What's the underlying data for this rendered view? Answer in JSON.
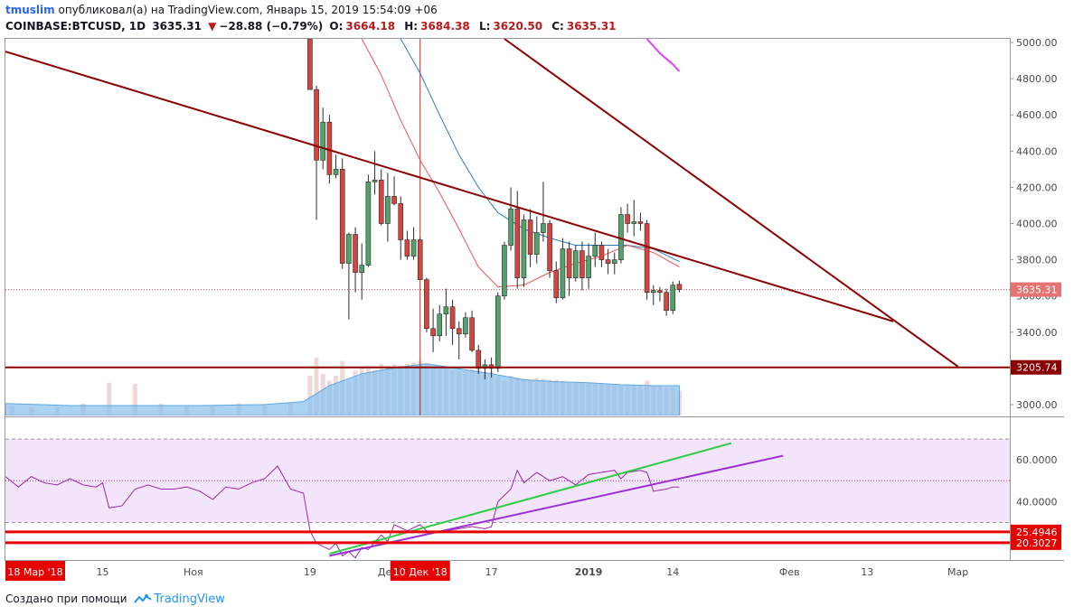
{
  "header": {
    "user": "tmuslim",
    "published": "опубликовал(а) на TradingView.com, Январь 15, 2019 15:54:09 +06",
    "symbol": "COINBASE:BTCUSD, 1D",
    "last": "3635.31",
    "change": "−28.88 (−0.79%)",
    "open_label": "O:",
    "open": "3664.18",
    "high_label": "H:",
    "high": "3684.38",
    "low_label": "L:",
    "low": "3620.50",
    "close_label": "C:",
    "close": "3635.31"
  },
  "footer": {
    "created_with": "Создано при помощи",
    "brand": "TradingView"
  },
  "colors": {
    "up": "#53a26b",
    "down": "#d4453f",
    "trend": "#8b0000",
    "ma_fast": "#ef5350",
    "ma_slow": "#2979c4",
    "rsi": "#9c27b0",
    "rsi_band": "#f3e5fb",
    "green_line": "#2ecc40",
    "purple_line": "#9b2fd6",
    "level_red": "#e60000"
  },
  "chart_data": {
    "type": "candlestick",
    "symbol": "COINBASE:BTCUSD",
    "interval": "1D",
    "price_axis": {
      "ticks": [
        "3000.00",
        "3200.00",
        "3400.00",
        "3600.00",
        "3800.00",
        "4000.00",
        "4200.00",
        "4400.00",
        "4600.00",
        "4800.00",
        "5000.00"
      ],
      "tick_values": [
        3000,
        3200,
        3400,
        3600,
        3800,
        4000,
        4200,
        4400,
        4600,
        4800,
        5000
      ],
      "range": [
        2940,
        5020
      ],
      "last_price_label": "3635.31",
      "last_price": 3635.31,
      "support_label": "3205.74",
      "support": 3205.74
    },
    "time_axis": {
      "ticks": [
        {
          "label": "15",
          "day": 15
        },
        {
          "label": "Ноя",
          "day": 29
        },
        {
          "label": "19",
          "day": 47
        },
        {
          "label": "Дек",
          "day": 59
        },
        {
          "label": "17",
          "day": 75
        },
        {
          "label": "2019",
          "day": 90
        },
        {
          "label": "14",
          "day": 103
        },
        {
          "label": "Фев",
          "day": 121
        },
        {
          "label": "13",
          "day": 133
        },
        {
          "label": "Мар",
          "day": 147
        }
      ],
      "range": [
        0,
        155
      ],
      "left_flag": "18 Мар '18",
      "cursor_flag": "10 Дек '18",
      "cursor_day": 64
    },
    "ohlc": [
      {
        "d": 47,
        "o": 5020,
        "h": 5020,
        "l": 4740,
        "c": 4740
      },
      {
        "d": 48,
        "o": 4740,
        "h": 4760,
        "l": 4020,
        "c": 4350
      },
      {
        "d": 49,
        "o": 4350,
        "h": 4640,
        "l": 4300,
        "c": 4560
      },
      {
        "d": 50,
        "o": 4560,
        "h": 4600,
        "l": 4220,
        "c": 4270
      },
      {
        "d": 51,
        "o": 4270,
        "h": 4380,
        "l": 4250,
        "c": 4300
      },
      {
        "d": 52,
        "o": 4300,
        "h": 4360,
        "l": 3750,
        "c": 3780
      },
      {
        "d": 53,
        "o": 3780,
        "h": 3950,
        "l": 3470,
        "c": 3940
      },
      {
        "d": 54,
        "o": 3940,
        "h": 3980,
        "l": 3620,
        "c": 3730
      },
      {
        "d": 55,
        "o": 3730,
        "h": 3890,
        "l": 3580,
        "c": 3770
      },
      {
        "d": 56,
        "o": 3770,
        "h": 4270,
        "l": 3760,
        "c": 4230
      },
      {
        "d": 57,
        "o": 4230,
        "h": 4400,
        "l": 4160,
        "c": 4240
      },
      {
        "d": 58,
        "o": 4240,
        "h": 4300,
        "l": 3990,
        "c": 4000
      },
      {
        "d": 59,
        "o": 4000,
        "h": 4280,
        "l": 3900,
        "c": 4150
      },
      {
        "d": 60,
        "o": 4150,
        "h": 4260,
        "l": 4100,
        "c": 4110
      },
      {
        "d": 61,
        "o": 4110,
        "h": 4150,
        "l": 3800,
        "c": 3910
      },
      {
        "d": 62,
        "o": 3910,
        "h": 3960,
        "l": 3800,
        "c": 3820
      },
      {
        "d": 63,
        "o": 3820,
        "h": 3980,
        "l": 3800,
        "c": 3910
      },
      {
        "d": 64,
        "o": 3910,
        "h": 3920,
        "l": 3690,
        "c": 3690
      },
      {
        "d": 65,
        "o": 3690,
        "h": 3700,
        "l": 3400,
        "c": 3420
      },
      {
        "d": 66,
        "o": 3420,
        "h": 3530,
        "l": 3290,
        "c": 3380
      },
      {
        "d": 67,
        "o": 3380,
        "h": 3550,
        "l": 3350,
        "c": 3500
      },
      {
        "d": 68,
        "o": 3500,
        "h": 3640,
        "l": 3380,
        "c": 3540
      },
      {
        "d": 69,
        "o": 3540,
        "h": 3580,
        "l": 3330,
        "c": 3420
      },
      {
        "d": 70,
        "o": 3420,
        "h": 3460,
        "l": 3250,
        "c": 3390
      },
      {
        "d": 71,
        "o": 3390,
        "h": 3510,
        "l": 3370,
        "c": 3480
      },
      {
        "d": 72,
        "o": 3480,
        "h": 3520,
        "l": 3290,
        "c": 3300
      },
      {
        "d": 73,
        "o": 3300,
        "h": 3330,
        "l": 3170,
        "c": 3200
      },
      {
        "d": 74,
        "o": 3200,
        "h": 3250,
        "l": 3140,
        "c": 3220
      },
      {
        "d": 75,
        "o": 3220,
        "h": 3260,
        "l": 3150,
        "c": 3200
      },
      {
        "d": 76,
        "o": 3200,
        "h": 3620,
        "l": 3180,
        "c": 3600
      },
      {
        "d": 77,
        "o": 3600,
        "h": 3900,
        "l": 3580,
        "c": 3880
      },
      {
        "d": 78,
        "o": 3880,
        "h": 4200,
        "l": 3850,
        "c": 4080
      },
      {
        "d": 79,
        "o": 4080,
        "h": 4180,
        "l": 3640,
        "c": 3700
      },
      {
        "d": 80,
        "o": 3700,
        "h": 4050,
        "l": 3650,
        "c": 4020
      },
      {
        "d": 81,
        "o": 4020,
        "h": 4080,
        "l": 3760,
        "c": 3830
      },
      {
        "d": 82,
        "o": 3830,
        "h": 4040,
        "l": 3780,
        "c": 3950
      },
      {
        "d": 83,
        "o": 3950,
        "h": 4230,
        "l": 3900,
        "c": 4000
      },
      {
        "d": 84,
        "o": 4000,
        "h": 4020,
        "l": 3700,
        "c": 3740
      },
      {
        "d": 85,
        "o": 3740,
        "h": 3790,
        "l": 3560,
        "c": 3590
      },
      {
        "d": 86,
        "o": 3590,
        "h": 3920,
        "l": 3580,
        "c": 3860
      },
      {
        "d": 87,
        "o": 3860,
        "h": 3900,
        "l": 3600,
        "c": 3700
      },
      {
        "d": 88,
        "o": 3700,
        "h": 3880,
        "l": 3680,
        "c": 3850
      },
      {
        "d": 89,
        "o": 3850,
        "h": 3900,
        "l": 3630,
        "c": 3700
      },
      {
        "d": 90,
        "o": 3700,
        "h": 3890,
        "l": 3640,
        "c": 3820
      },
      {
        "d": 91,
        "o": 3820,
        "h": 3950,
        "l": 3760,
        "c": 3880
      },
      {
        "d": 92,
        "o": 3880,
        "h": 3900,
        "l": 3760,
        "c": 3800
      },
      {
        "d": 93,
        "o": 3800,
        "h": 3860,
        "l": 3720,
        "c": 3780
      },
      {
        "d": 94,
        "o": 3780,
        "h": 3840,
        "l": 3720,
        "c": 3800
      },
      {
        "d": 95,
        "o": 3800,
        "h": 4090,
        "l": 3780,
        "c": 4050
      },
      {
        "d": 96,
        "o": 4050,
        "h": 4110,
        "l": 3950,
        "c": 4000
      },
      {
        "d": 97,
        "o": 4000,
        "h": 4130,
        "l": 3930,
        "c": 4010
      },
      {
        "d": 98,
        "o": 4010,
        "h": 4060,
        "l": 3960,
        "c": 4000
      },
      {
        "d": 99,
        "o": 4000,
        "h": 4020,
        "l": 3580,
        "c": 3620
      },
      {
        "d": 100,
        "o": 3620,
        "h": 3660,
        "l": 3550,
        "c": 3630
      },
      {
        "d": 101,
        "o": 3630,
        "h": 3650,
        "l": 3570,
        "c": 3620
      },
      {
        "d": 102,
        "o": 3620,
        "h": 3640,
        "l": 3490,
        "c": 3520
      },
      {
        "d": 103,
        "o": 3520,
        "h": 3680,
        "l": 3500,
        "c": 3660
      },
      {
        "d": 104,
        "o": 3664.18,
        "h": 3684.38,
        "l": 3620.5,
        "c": 3635.31
      }
    ],
    "ma_fast": [
      [
        55,
        5020
      ],
      [
        58,
        4820
      ],
      [
        61,
        4570
      ],
      [
        64,
        4350
      ],
      [
        67,
        4170
      ],
      [
        70,
        3970
      ],
      [
        73,
        3760
      ],
      [
        76,
        3650
      ],
      [
        80,
        3660
      ],
      [
        84,
        3730
      ],
      [
        88,
        3780
      ],
      [
        92,
        3820
      ],
      [
        96,
        3880
      ],
      [
        100,
        3840
      ],
      [
        104,
        3760
      ]
    ],
    "ma_slow": [
      [
        61,
        5020
      ],
      [
        64,
        4830
      ],
      [
        67,
        4600
      ],
      [
        70,
        4380
      ],
      [
        73,
        4200
      ],
      [
        76,
        4060
      ],
      [
        80,
        3970
      ],
      [
        84,
        3920
      ],
      [
        88,
        3880
      ],
      [
        92,
        3880
      ],
      [
        96,
        3880
      ],
      [
        100,
        3860
      ],
      [
        104,
        3790
      ]
    ],
    "ma_magenta": [
      [
        99,
        5020
      ],
      [
        101,
        4940
      ],
      [
        103,
        4880
      ],
      [
        104,
        4840
      ]
    ],
    "volume": [
      {
        "d": 1,
        "v": 0.1
      },
      {
        "d": 4,
        "v": 0.08
      },
      {
        "d": 8,
        "v": 0.09
      },
      {
        "d": 12,
        "v": 0.12
      },
      {
        "d": 16,
        "v": 0.33
      },
      {
        "d": 20,
        "v": 0.32
      },
      {
        "d": 24,
        "v": 0.12
      },
      {
        "d": 28,
        "v": 0.1
      },
      {
        "d": 32,
        "v": 0.1
      },
      {
        "d": 36,
        "v": 0.12
      },
      {
        "d": 40,
        "v": 0.11
      },
      {
        "d": 44,
        "v": 0.12
      },
      {
        "d": 47,
        "v": 0.4
      },
      {
        "d": 48,
        "v": 0.58
      },
      {
        "d": 49,
        "v": 0.42
      },
      {
        "d": 50,
        "v": 0.35
      },
      {
        "d": 51,
        "v": 0.4
      },
      {
        "d": 52,
        "v": 0.55
      },
      {
        "d": 53,
        "v": 0.35
      },
      {
        "d": 54,
        "v": 0.45
      },
      {
        "d": 55,
        "v": 0.48
      },
      {
        "d": 56,
        "v": 0.5
      },
      {
        "d": 57,
        "v": 0.46
      },
      {
        "d": 58,
        "v": 0.52
      },
      {
        "d": 59,
        "v": 0.5
      },
      {
        "d": 60,
        "v": 0.52
      },
      {
        "d": 61,
        "v": 0.5
      },
      {
        "d": 62,
        "v": 0.52
      },
      {
        "d": 63,
        "v": 0.53
      },
      {
        "d": 64,
        "v": 0.55
      },
      {
        "d": 65,
        "v": 0.52
      },
      {
        "d": 66,
        "v": 0.5
      },
      {
        "d": 67,
        "v": 0.5
      },
      {
        "d": 68,
        "v": 0.48
      },
      {
        "d": 69,
        "v": 0.45
      },
      {
        "d": 70,
        "v": 0.45
      },
      {
        "d": 71,
        "v": 0.45
      },
      {
        "d": 72,
        "v": 0.47
      },
      {
        "d": 73,
        "v": 0.46
      },
      {
        "d": 74,
        "v": 0.44
      },
      {
        "d": 75,
        "v": 0.44
      },
      {
        "d": 76,
        "v": 0.4
      },
      {
        "d": 77,
        "v": 0.35
      },
      {
        "d": 78,
        "v": 0.4
      },
      {
        "d": 79,
        "v": 0.38
      },
      {
        "d": 80,
        "v": 0.37
      },
      {
        "d": 81,
        "v": 0.36
      },
      {
        "d": 82,
        "v": 0.38
      },
      {
        "d": 83,
        "v": 0.37
      },
      {
        "d": 84,
        "v": 0.36
      },
      {
        "d": 85,
        "v": 0.36
      },
      {
        "d": 86,
        "v": 0.35
      },
      {
        "d": 87,
        "v": 0.34
      },
      {
        "d": 88,
        "v": 0.34
      },
      {
        "d": 89,
        "v": 0.33
      },
      {
        "d": 90,
        "v": 0.33
      },
      {
        "d": 91,
        "v": 0.33
      },
      {
        "d": 92,
        "v": 0.32
      },
      {
        "d": 93,
        "v": 0.32
      },
      {
        "d": 94,
        "v": 0.31
      },
      {
        "d": 95,
        "v": 0.3
      },
      {
        "d": 96,
        "v": 0.3
      },
      {
        "d": 97,
        "v": 0.3
      },
      {
        "d": 98,
        "v": 0.3
      },
      {
        "d": 99,
        "v": 0.35
      },
      {
        "d": 100,
        "v": 0.3
      },
      {
        "d": 101,
        "v": 0.3
      },
      {
        "d": 102,
        "v": 0.28
      },
      {
        "d": 103,
        "v": 0.28
      },
      {
        "d": 104,
        "v": 0.25
      }
    ],
    "volume_ma": [
      [
        0,
        0.12
      ],
      [
        10,
        0.1
      ],
      [
        20,
        0.1
      ],
      [
        30,
        0.1
      ],
      [
        40,
        0.11
      ],
      [
        46,
        0.14
      ],
      [
        50,
        0.3
      ],
      [
        55,
        0.42
      ],
      [
        60,
        0.48
      ],
      [
        65,
        0.52
      ],
      [
        70,
        0.47
      ],
      [
        75,
        0.42
      ],
      [
        80,
        0.36
      ],
      [
        85,
        0.34
      ],
      [
        90,
        0.33
      ],
      [
        95,
        0.31
      ],
      [
        100,
        0.3
      ],
      [
        104,
        0.3
      ]
    ],
    "trendlines": [
      {
        "name_en": "",
        "from": [
          0,
          4950
        ],
        "to": [
          137,
          3460
        ],
        "color": "#8b0000"
      },
      {
        "from": [
          77,
          5020
        ],
        "to": [
          147,
          3210
        ],
        "color": "#8b0000"
      },
      {
        "from": [
          0,
          3205.74
        ],
        "to": [
          155,
          3205.74
        ],
        "color": "#8b0000"
      }
    ],
    "rsi_panel": {
      "ticks": [
        "60.0000",
        "40.0000"
      ],
      "tick_values": [
        60,
        40
      ],
      "range": [
        12,
        80
      ],
      "band": [
        30,
        70
      ],
      "mid": 50,
      "level_labels": [
        "25.4946",
        "20.3027"
      ],
      "levels": [
        25.4946,
        20.3027
      ],
      "rsi": [
        [
          0,
          52
        ],
        [
          2,
          47
        ],
        [
          4,
          52
        ],
        [
          6,
          49
        ],
        [
          8,
          48
        ],
        [
          10,
          51
        ],
        [
          12,
          48
        ],
        [
          14,
          47
        ],
        [
          15,
          49
        ],
        [
          16,
          37
        ],
        [
          18,
          38
        ],
        [
          20,
          46
        ],
        [
          22,
          48
        ],
        [
          24,
          46
        ],
        [
          26,
          46
        ],
        [
          28,
          47
        ],
        [
          30,
          45
        ],
        [
          32,
          41
        ],
        [
          34,
          47
        ],
        [
          36,
          46
        ],
        [
          38,
          49
        ],
        [
          40,
          51
        ],
        [
          42,
          57
        ],
        [
          44,
          46
        ],
        [
          46,
          44
        ],
        [
          47,
          26
        ],
        [
          48,
          20
        ],
        [
          50,
          17
        ],
        [
          51,
          20
        ],
        [
          52,
          14
        ],
        [
          53,
          16
        ],
        [
          54,
          13
        ],
        [
          55,
          18
        ],
        [
          56,
          17
        ],
        [
          58,
          24
        ],
        [
          59,
          21
        ],
        [
          60,
          29
        ],
        [
          62,
          26
        ],
        [
          64,
          29
        ],
        [
          65,
          26
        ],
        [
          66,
          25
        ],
        [
          68,
          26
        ],
        [
          70,
          27
        ],
        [
          72,
          28
        ],
        [
          74,
          27
        ],
        [
          75,
          28
        ],
        [
          76,
          40
        ],
        [
          78,
          46
        ],
        [
          79,
          55
        ],
        [
          80,
          49
        ],
        [
          82,
          54
        ],
        [
          84,
          50
        ],
        [
          86,
          52
        ],
        [
          88,
          48
        ],
        [
          90,
          53
        ],
        [
          92,
          54
        ],
        [
          94,
          55
        ],
        [
          95,
          51
        ],
        [
          96,
          54
        ],
        [
          98,
          55
        ],
        [
          99,
          54
        ],
        [
          100,
          45
        ],
        [
          102,
          46
        ],
        [
          103,
          47
        ],
        [
          104,
          47
        ]
      ],
      "green_line": {
        "from": [
          50,
          15
        ],
        "to": [
          112,
          68
        ]
      },
      "purple_line": {
        "from": [
          50,
          14
        ],
        "to": [
          120,
          62
        ]
      }
    }
  }
}
